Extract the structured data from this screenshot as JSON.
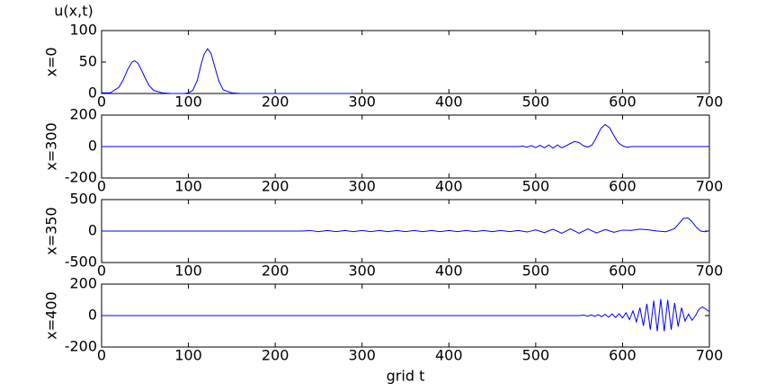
{
  "chart_data": [
    {
      "type": "line",
      "title": "u(x,t)",
      "ylabel": "x=0",
      "color": "#0000ff",
      "x": [
        0,
        10,
        20,
        25,
        30,
        35,
        38,
        42,
        46,
        50,
        55,
        60,
        70,
        80,
        95,
        100,
        105,
        110,
        115,
        118,
        122,
        126,
        130,
        135,
        140,
        150,
        160,
        200,
        290
      ],
      "values": [
        1,
        1,
        10,
        22,
        38,
        50,
        52,
        48,
        37,
        25,
        12,
        5,
        1,
        0,
        0,
        1,
        5,
        20,
        48,
        62,
        71,
        64,
        44,
        20,
        6,
        1,
        0,
        0,
        0
      ],
      "xlim": [
        0,
        700
      ],
      "xticks": [
        0,
        100,
        200,
        300,
        400,
        500,
        600,
        700
      ],
      "ylim": [
        0,
        100
      ],
      "yticks": [
        0,
        50,
        100
      ]
    },
    {
      "type": "line",
      "ylabel": "x=300",
      "color": "#0000ff",
      "x": [
        0,
        480,
        485,
        490,
        495,
        500,
        505,
        510,
        515,
        520,
        525,
        530,
        535,
        540,
        545,
        550,
        555,
        560,
        565,
        570,
        575,
        580,
        585,
        590,
        595,
        600,
        605,
        610,
        620,
        700
      ],
      "values": [
        0,
        0,
        3,
        -4,
        6,
        -7,
        8,
        -9,
        10,
        -10,
        10,
        -8,
        5,
        20,
        32,
        25,
        5,
        -3,
        10,
        60,
        115,
        140,
        120,
        70,
        25,
        5,
        -5,
        0,
        0,
        0
      ],
      "xlim": [
        0,
        700
      ],
      "xticks": [
        0,
        100,
        200,
        300,
        400,
        500,
        600,
        700
      ],
      "ylim": [
        -200,
        200
      ],
      "yticks": [
        -200,
        0,
        200
      ]
    },
    {
      "type": "line",
      "ylabel": "x=350",
      "color": "#0000ff",
      "x": [
        0,
        230,
        240,
        250,
        260,
        270,
        280,
        290,
        300,
        310,
        320,
        330,
        340,
        350,
        360,
        370,
        380,
        390,
        400,
        410,
        420,
        430,
        440,
        450,
        460,
        470,
        480,
        490,
        500,
        510,
        520,
        530,
        540,
        550,
        560,
        570,
        580,
        590,
        600,
        610,
        620,
        630,
        640,
        650,
        660,
        665,
        670,
        675,
        680,
        685,
        690,
        695,
        700
      ],
      "values": [
        0,
        0,
        8,
        -8,
        8,
        -8,
        8,
        -8,
        8,
        -8,
        8,
        -8,
        8,
        -8,
        8,
        -8,
        8,
        -8,
        8,
        -8,
        8,
        -8,
        8,
        -8,
        8,
        -8,
        8,
        -15,
        20,
        -25,
        30,
        -35,
        35,
        -35,
        35,
        -30,
        25,
        -20,
        15,
        10,
        30,
        20,
        0,
        -10,
        40,
        120,
        200,
        210,
        150,
        60,
        0,
        -10,
        5
      ],
      "xlim": [
        0,
        700
      ],
      "xticks": [
        0,
        100,
        200,
        300,
        400,
        500,
        600,
        700
      ],
      "ylim": [
        -500,
        500
      ],
      "yticks": [
        -500,
        0,
        500
      ]
    },
    {
      "type": "line",
      "ylabel": "x=400",
      "xlabel": "grid  t",
      "color": "#0000ff",
      "x": [
        0,
        550,
        556,
        560,
        564,
        568,
        572,
        576,
        580,
        584,
        588,
        592,
        596,
        600,
        604,
        608,
        612,
        616,
        620,
        624,
        628,
        632,
        636,
        640,
        644,
        648,
        652,
        656,
        660,
        664,
        668,
        672,
        676,
        680,
        684,
        688,
        692,
        696,
        700
      ],
      "values": [
        0,
        0,
        3,
        -4,
        5,
        -5,
        6,
        -7,
        8,
        -10,
        10,
        -12,
        12,
        -15,
        18,
        -25,
        30,
        -40,
        50,
        -65,
        75,
        -90,
        95,
        -100,
        105,
        -100,
        100,
        -90,
        80,
        -70,
        50,
        -35,
        10,
        -30,
        0,
        40,
        55,
        40,
        25
      ],
      "xlim": [
        0,
        700
      ],
      "xticks": [
        0,
        100,
        200,
        300,
        400,
        500,
        600,
        700
      ],
      "ylim": [
        -200,
        200
      ],
      "yticks": [
        -200,
        0,
        200
      ]
    }
  ]
}
